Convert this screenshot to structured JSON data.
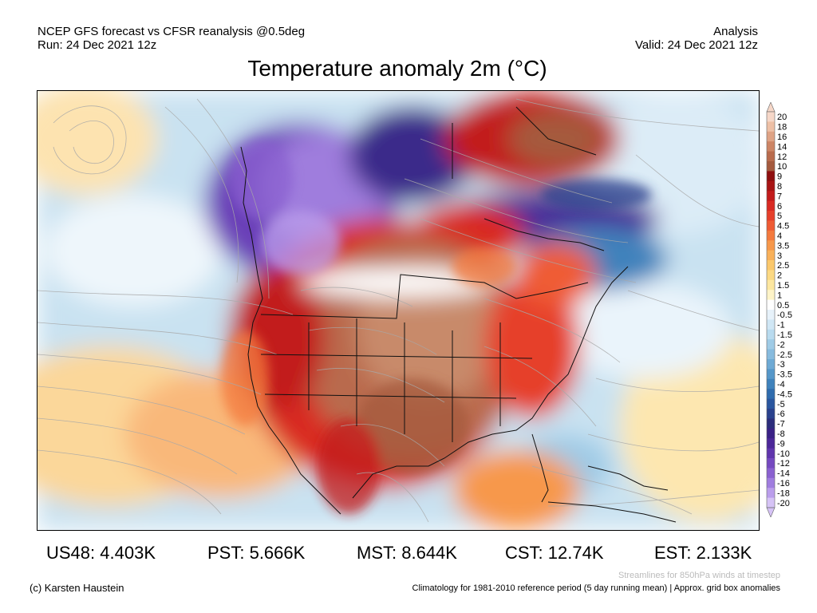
{
  "header": {
    "left_line1": "NCEP GFS forecast vs CFSR reanalysis @0.5deg",
    "left_line2": "Run: 24 Dec 2021 12z",
    "right_line1": "Analysis",
    "right_line2": "Valid: 24 Dec 2021 12z"
  },
  "title": "Temperature anomaly 2m (°C)",
  "colorbar": {
    "labels": [
      "20",
      "18",
      "16",
      "14",
      "12",
      "10",
      "9",
      "8",
      "7",
      "6",
      "5",
      "4.5",
      "4",
      "3.5",
      "3",
      "2.5",
      "2",
      "1.5",
      "1",
      "0.5",
      "-0.5",
      "-1",
      "-1.5",
      "-2",
      "-2.5",
      "-3",
      "-3.5",
      "-4",
      "-4.5",
      "-5",
      "-6",
      "-7",
      "-8",
      "-9",
      "-10",
      "-12",
      "-14",
      "-16",
      "-18",
      "-20"
    ],
    "colors": [
      "#f6d7c8",
      "#eec0a6",
      "#dfa385",
      "#cd8565",
      "#b96b4d",
      "#a55a3e",
      "#8f0f0f",
      "#a81414",
      "#c21b1b",
      "#d92a23",
      "#e6402b",
      "#ef5b34",
      "#f47a3e",
      "#f7984b",
      "#f9b15a",
      "#fbc86c",
      "#fcd983",
      "#fde7a0",
      "#fef4c8",
      "#ffffff",
      "#e7f2fa",
      "#d0e7f5",
      "#b9dbef",
      "#9fcbe6",
      "#87bbde",
      "#6eaad5",
      "#5597c9",
      "#3f82bc",
      "#2f6cae",
      "#2a569f",
      "#2a418d",
      "#2c2d7c",
      "#3a2186",
      "#4c2799",
      "#6035ad",
      "#7549c0",
      "#8a61d0",
      "#a07ddf",
      "#bb9eec",
      "#d6c3f6"
    ]
  },
  "stats": [
    {
      "label": "US48:",
      "value": "4.403K"
    },
    {
      "label": "PST:",
      "value": "5.666K"
    },
    {
      "label": "MST:",
      "value": "8.644K"
    },
    {
      "label": "CST:",
      "value": "12.74K"
    },
    {
      "label": "EST:",
      "value": "2.133K"
    }
  ],
  "footer": {
    "credit": "(c) Karsten Haustein",
    "streamline_note": "Streamlines for 850hPa winds at timestep",
    "climatology_note": "Climatology for 1981-2010 reference period (5 day running mean) | Approx. grid box anomalies"
  }
}
